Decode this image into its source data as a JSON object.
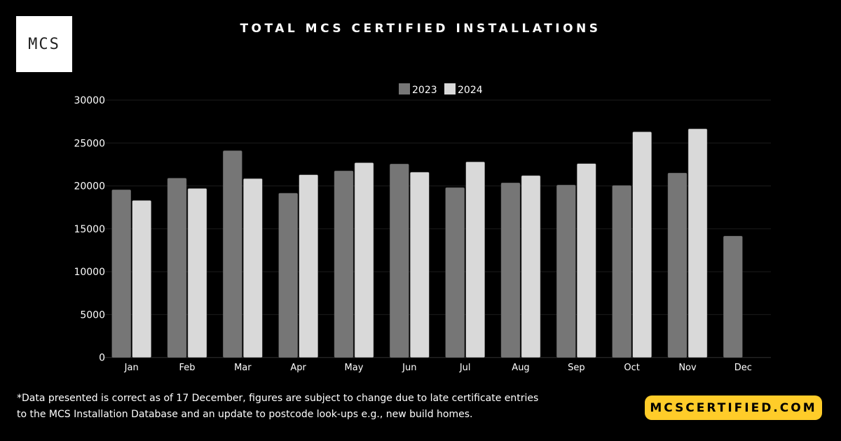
{
  "logo": {
    "text": "MCS"
  },
  "footnote": "*Data presented is correct as of 17 December, figures are subject to change due to late certificate entries to the MCS Installation Database and an update to postcode look-ups e.g., new build homes.",
  "website": "MCSCERTIFIED.COM",
  "colors": {
    "background": "#000000",
    "series_2023": "#767676",
    "series_2024": "#d9d9d9",
    "accent": "#ffcc29"
  },
  "chart_data": {
    "type": "bar",
    "title": "TOTAL MCS CERTIFIED INSTALLATIONS",
    "xlabel": "",
    "ylabel": "",
    "categories": [
      "Jan",
      "Feb",
      "Mar",
      "Apr",
      "May",
      "Jun",
      "Jul",
      "Aug",
      "Sep",
      "Oct",
      "Nov",
      "Dec"
    ],
    "series": [
      {
        "name": "2023",
        "color": "#767676",
        "values": [
          19550,
          20900,
          24100,
          19150,
          21750,
          22550,
          19800,
          20350,
          20100,
          20050,
          21500,
          14150
        ]
      },
      {
        "name": "2024",
        "color": "#d9d9d9",
        "values": [
          18300,
          19700,
          20850,
          21300,
          22700,
          21600,
          22800,
          21200,
          22600,
          26300,
          26650,
          null
        ]
      }
    ],
    "ylim": [
      0,
      30000
    ],
    "yticks": [
      "0",
      "5000",
      "10000",
      "15000",
      "20000",
      "25000",
      "30000"
    ],
    "grid": true,
    "legend": "top-center"
  }
}
